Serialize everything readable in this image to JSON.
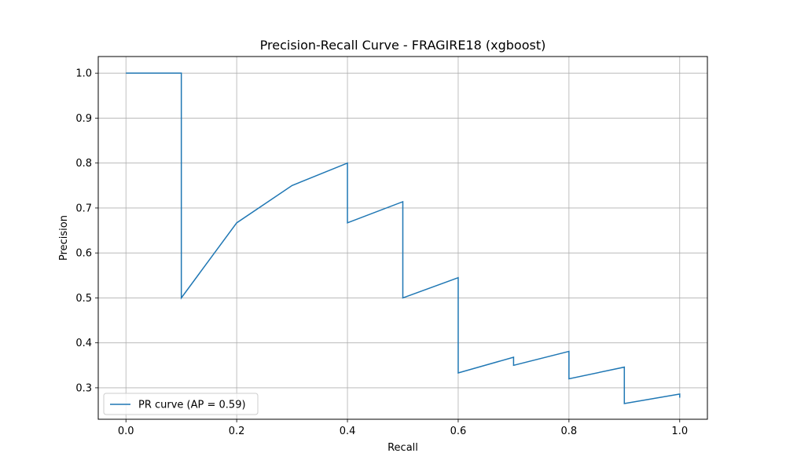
{
  "chart_data": {
    "type": "line",
    "title": "Precision-Recall Curve - FRAGIRE18 (xgboost)",
    "xlabel": "Recall",
    "ylabel": "Precision",
    "xlim": [
      -0.05,
      1.05
    ],
    "ylim": [
      0.23,
      1.037
    ],
    "grid": true,
    "legend_position": "lower-left",
    "x_ticks": [
      0.0,
      0.2,
      0.4,
      0.6,
      0.8,
      1.0
    ],
    "x_tick_labels": [
      "0.0",
      "0.2",
      "0.4",
      "0.6",
      "0.8",
      "1.0"
    ],
    "y_ticks": [
      0.3,
      0.4,
      0.5,
      0.6,
      0.7,
      0.8,
      0.9,
      1.0
    ],
    "y_tick_labels": [
      "0.3",
      "0.4",
      "0.5",
      "0.6",
      "0.7",
      "0.8",
      "0.9",
      "1.0"
    ],
    "series": [
      {
        "name": "PR curve (AP = 0.59)",
        "color": "#1f77b4",
        "x": [
          0.0,
          0.1,
          0.1,
          0.2,
          0.3,
          0.4,
          0.4,
          0.5,
          0.5,
          0.6,
          0.6,
          0.7,
          0.7,
          0.8,
          0.8,
          0.9,
          0.9,
          1.0,
          1.0
        ],
        "y": [
          1.0,
          1.0,
          0.5,
          0.667,
          0.75,
          0.8,
          0.667,
          0.714,
          0.5,
          0.545,
          0.333,
          0.368,
          0.35,
          0.381,
          0.32,
          0.346,
          0.265,
          0.286,
          0.278
        ]
      }
    ]
  }
}
